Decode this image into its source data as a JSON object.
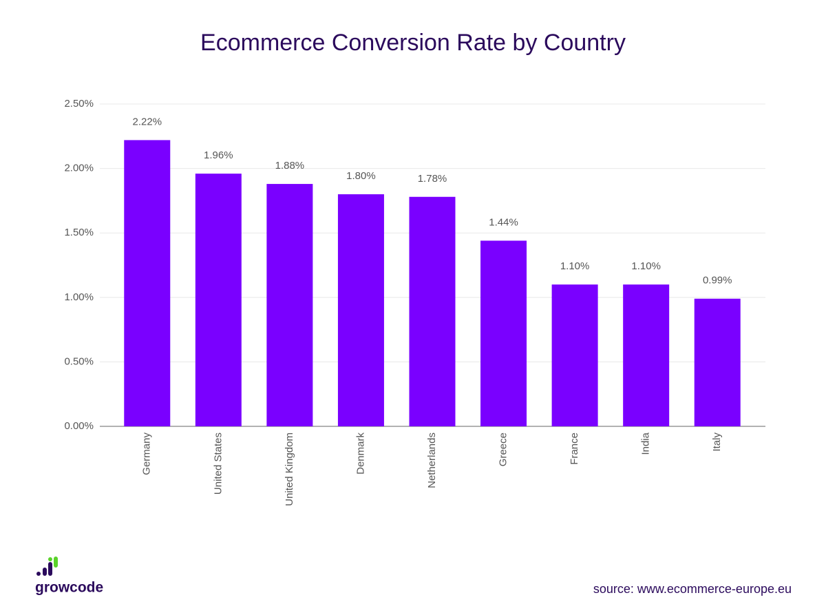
{
  "chart_data": {
    "type": "bar",
    "title": "Ecommerce Conversion Rate by Country",
    "categories": [
      "Germany",
      "United States",
      "United Kingdom",
      "Denmark",
      "Netherlands",
      "Greece",
      "France",
      "India",
      "Italy"
    ],
    "values": [
      2.22,
      1.96,
      1.88,
      1.8,
      1.78,
      1.44,
      1.1,
      1.1,
      0.99
    ],
    "value_labels": [
      "2.22%",
      "1.96%",
      "1.88%",
      "1.80%",
      "1.78%",
      "1.44%",
      "1.10%",
      "1.10%",
      "0.99%"
    ],
    "color": "#7a00ff",
    "ylim": [
      0,
      2.5
    ],
    "yticks": [
      {
        "value": 0,
        "label": "0.00%"
      },
      {
        "value": 0.5,
        "label": "0.50%"
      },
      {
        "value": 1,
        "label": "1.00%"
      },
      {
        "value": 1.5,
        "label": "1.50%"
      },
      {
        "value": 2,
        "label": "2.00%"
      },
      {
        "value": 2.5,
        "label": "2.50%"
      }
    ],
    "grid": true
  },
  "logo": "growcode",
  "source": "source: www.ecommerce-europe.eu"
}
